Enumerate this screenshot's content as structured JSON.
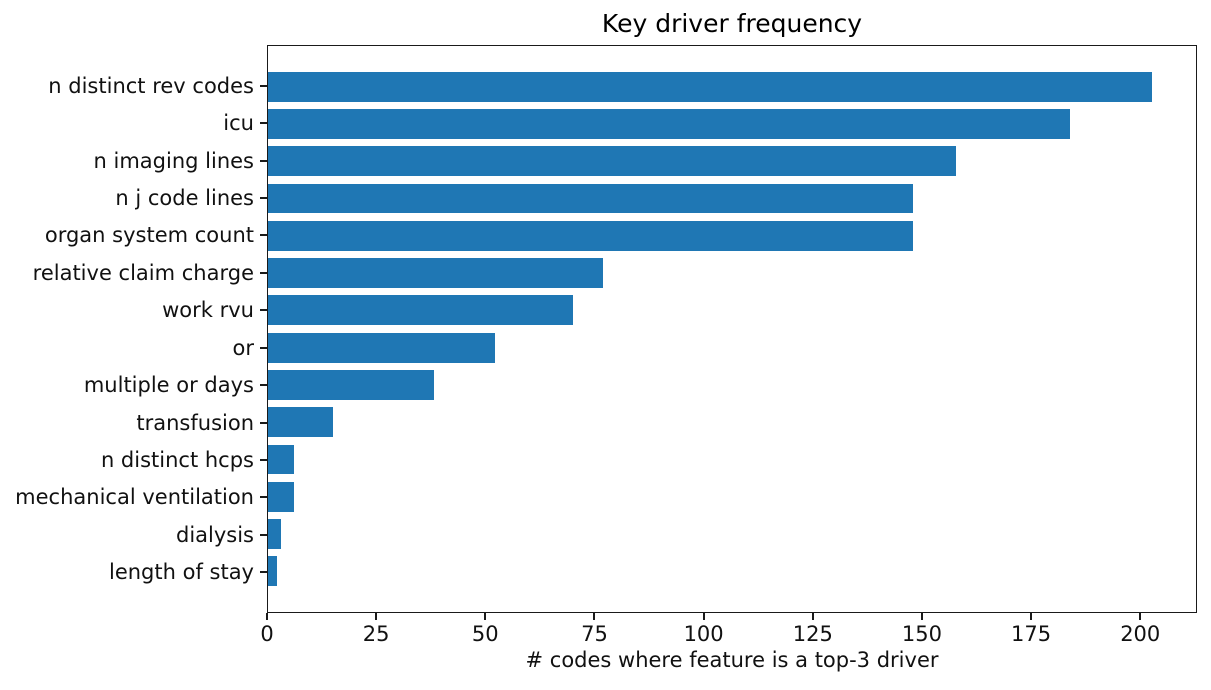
{
  "chart_data": {
    "type": "bar",
    "orientation": "horizontal",
    "title": "Key driver frequency",
    "xlabel": "# codes where feature is a top-3 driver",
    "ylabel": "",
    "categories": [
      "n distinct rev codes",
      "icu",
      "n imaging lines",
      "n j code lines",
      "organ system count",
      "relative claim charge",
      "work rvu",
      "or",
      "multiple or days",
      "transfusion",
      "n distinct hcps",
      "mechanical ventilation",
      "dialysis",
      "length of stay"
    ],
    "values": [
      203,
      184,
      158,
      148,
      148,
      77,
      70,
      52,
      38,
      15,
      6,
      6,
      3,
      2
    ],
    "xticks": [
      0,
      25,
      50,
      75,
      100,
      125,
      150,
      175,
      200
    ],
    "xlim": [
      0,
      213
    ],
    "bar_color": "#1f77b4",
    "grid": false,
    "legend": null
  }
}
